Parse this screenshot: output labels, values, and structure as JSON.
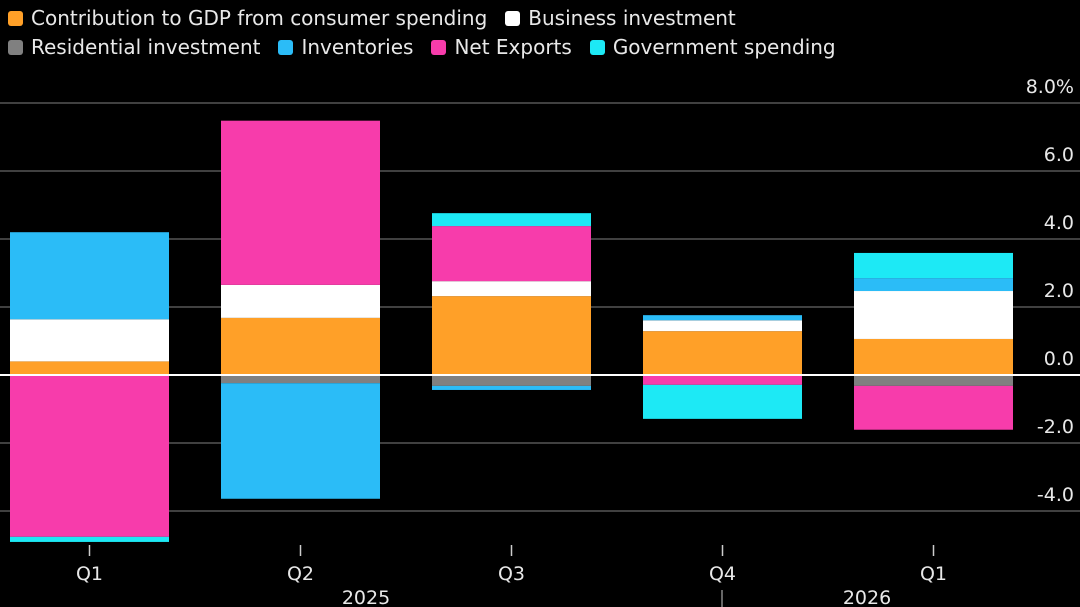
{
  "chart_data": {
    "type": "bar",
    "stacked": true,
    "title": "",
    "xlabel": "",
    "ylabel": "",
    "ylim": [
      -5,
      8
    ],
    "y_ticks": [
      8,
      6,
      4,
      2,
      0,
      -2,
      -4
    ],
    "y_tick_labels": [
      "8.0%",
      "6.0",
      "4.0",
      "2.0",
      "0.0",
      "-2.0",
      "-4.0"
    ],
    "categories": [
      "Q1",
      "Q2",
      "Q3",
      "Q4",
      "Q1"
    ],
    "year_labels": [
      {
        "label": "2025",
        "after_index": 1
      },
      {
        "label": "2026",
        "after_index": 4
      }
    ],
    "legend_placement": "top-left",
    "series": [
      {
        "name": "Contribution to GDP from consumer spending",
        "color": "#ffa028",
        "values": [
          0.4,
          1.68,
          2.32,
          1.29,
          1.06
        ]
      },
      {
        "name": "Business investment",
        "color": "#ffffff",
        "values": [
          1.24,
          0.97,
          0.44,
          0.32,
          1.41
        ]
      },
      {
        "name": "Residential investment",
        "color": "#808080",
        "values": [
          0.0,
          -0.24,
          -0.32,
          0.0,
          -0.32
        ]
      },
      {
        "name": "Inventories",
        "color": "#2bbcf7",
        "values": [
          2.56,
          -3.4,
          -0.12,
          0.15,
          0.38
        ]
      },
      {
        "name": "Net Exports",
        "color": "#f73cab",
        "values": [
          -4.76,
          4.83,
          1.62,
          -0.29,
          -1.29
        ]
      },
      {
        "name": "Government spending",
        "color": "#1de9f5",
        "values": [
          -0.15,
          0.0,
          0.38,
          -1.0,
          0.74
        ]
      }
    ]
  }
}
